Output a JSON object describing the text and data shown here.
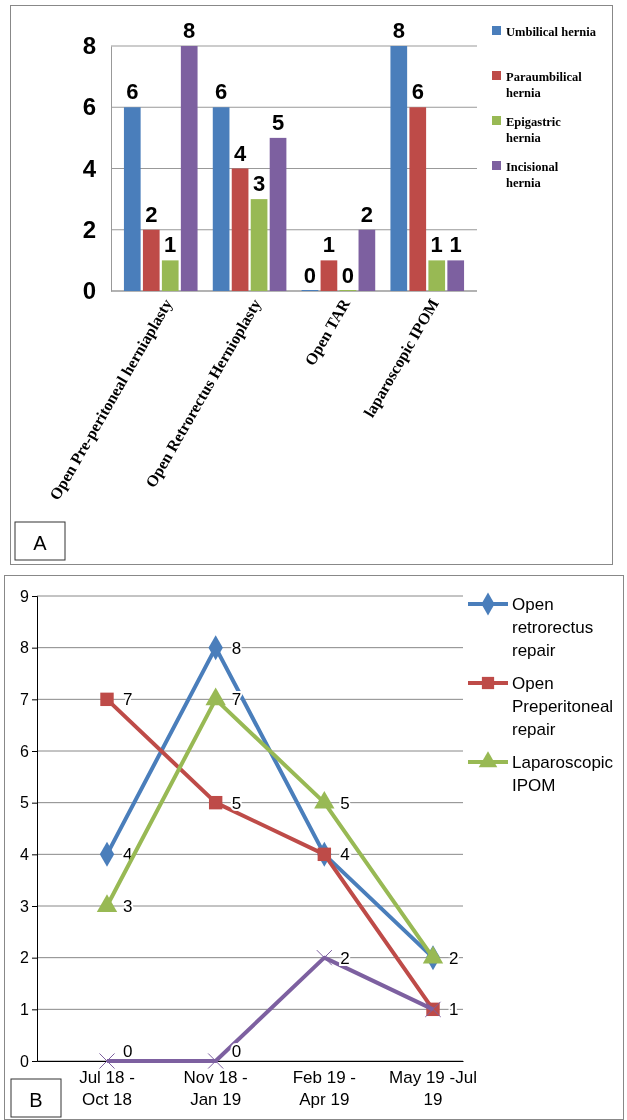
{
  "chart_data": [
    {
      "type": "bar",
      "categories": [
        "Open Pre-peritoneal herniaplasty",
        "Open Retrorectus Hernioplasty",
        "Open TAR",
        "laparoscopic IPOM"
      ],
      "series": [
        {
          "name": "Umbilical hernia",
          "color": "#4a7ebb",
          "values": [
            6,
            6,
            0,
            8
          ]
        },
        {
          "name": "Paraumbilical hernia",
          "color": "#be4b48",
          "values": [
            2,
            4,
            1,
            6
          ]
        },
        {
          "name": "Epigastric hernia",
          "color": "#98b954",
          "values": [
            1,
            3,
            0,
            1
          ]
        },
        {
          "name": "Incisional hernia",
          "color": "#7d60a0",
          "values": [
            8,
            5,
            2,
            1
          ]
        }
      ],
      "ylim": [
        0,
        8
      ],
      "yticks": [
        0,
        2,
        4,
        6,
        8
      ],
      "grid": "y",
      "legend": "right",
      "data_labels": true,
      "annotations": [
        "A"
      ]
    },
    {
      "type": "line",
      "categories": [
        "Jul 18 - Oct 18",
        "Nov 18 - Jan 19",
        "Feb 19 - Apr 19",
        "May 19 -Jul 19"
      ],
      "series": [
        {
          "name": "Open retrorectus repair",
          "color": "#4a7ebb",
          "marker": "diamond",
          "values": [
            4,
            8,
            4,
            2
          ],
          "value_labels": [
            "4",
            "8",
            "4",
            "2"
          ]
        },
        {
          "name": "Open Preperitoneal repair",
          "color": "#be4b48",
          "marker": "square",
          "values": [
            7,
            5,
            4,
            1
          ],
          "value_labels": [
            "7",
            "5",
            null,
            null
          ]
        },
        {
          "name": "Laparoscopic IPOM",
          "color": "#98b954",
          "marker": "triangle",
          "values": [
            3,
            7,
            5,
            2
          ],
          "value_labels": [
            "3",
            "7",
            "5",
            null
          ]
        },
        {
          "color": "#7d60a0",
          "marker": "cross",
          "values": [
            0,
            0,
            2,
            1
          ],
          "value_labels": [
            "0",
            "0",
            "2",
            "1"
          ]
        }
      ],
      "ylim": [
        0,
        9
      ],
      "yticks": [
        0,
        1,
        2,
        3,
        4,
        5,
        6,
        7,
        8,
        9
      ],
      "grid": "y",
      "legend": "right",
      "data_labels": false,
      "line_style": "solid",
      "annotations": [
        "B"
      ]
    }
  ]
}
